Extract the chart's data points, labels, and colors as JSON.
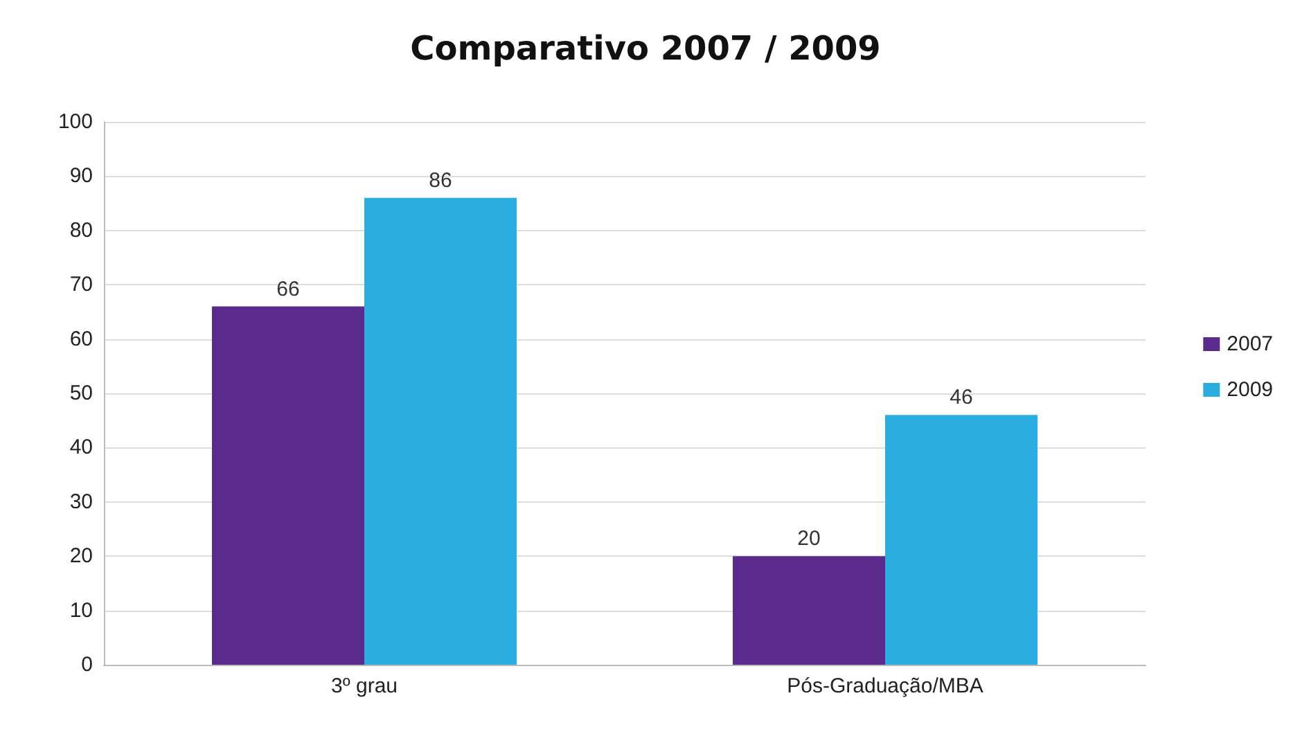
{
  "chart_data": {
    "type": "bar",
    "title": "Comparativo 2007 / 2009",
    "categories": [
      "3º grau",
      "Pós-Graduação/MBA"
    ],
    "series": [
      {
        "name": "2007",
        "color": "#5a2a8c",
        "values": [
          66,
          20
        ]
      },
      {
        "name": "2009",
        "color": "#2aaee0",
        "values": [
          86,
          46
        ]
      }
    ],
    "ylim": [
      0,
      100
    ],
    "yticks": [
      0,
      10,
      20,
      30,
      40,
      50,
      60,
      70,
      80,
      90,
      100
    ],
    "grid": "y",
    "legend": "right",
    "data_labels": true
  }
}
